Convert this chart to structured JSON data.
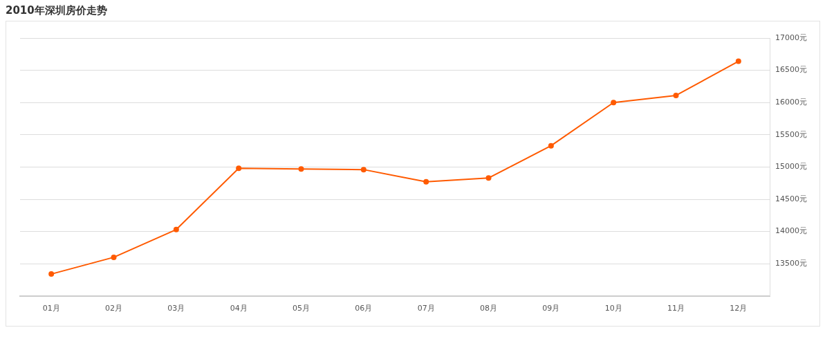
{
  "chart_data": {
    "type": "line",
    "title": "2010年深圳房价走势",
    "categories": [
      "01月",
      "02月",
      "03月",
      "04月",
      "05月",
      "06月",
      "07月",
      "08月",
      "09月",
      "10月",
      "11月",
      "12月"
    ],
    "series": [
      {
        "color": "#ff5a00",
        "values": [
          13340,
          13600,
          14030,
          14980,
          14970,
          14960,
          14770,
          14830,
          15330,
          16000,
          16110,
          16640
        ]
      }
    ],
    "ylim": [
      13000,
      17000
    ],
    "yticks": [
      {
        "value": 13000,
        "label": null
      },
      {
        "value": 13500,
        "label": "13500元"
      },
      {
        "value": 14000,
        "label": "14000元"
      },
      {
        "value": 14500,
        "label": "14500元"
      },
      {
        "value": 15000,
        "label": "15000元"
      },
      {
        "value": 15500,
        "label": "15500元"
      },
      {
        "value": 16000,
        "label": "16000元"
      },
      {
        "value": 16500,
        "label": "16500元"
      },
      {
        "value": 17000,
        "label": "17000元"
      }
    ],
    "grid": "y",
    "legend": false,
    "marker": "circle",
    "line_style": "solid"
  }
}
